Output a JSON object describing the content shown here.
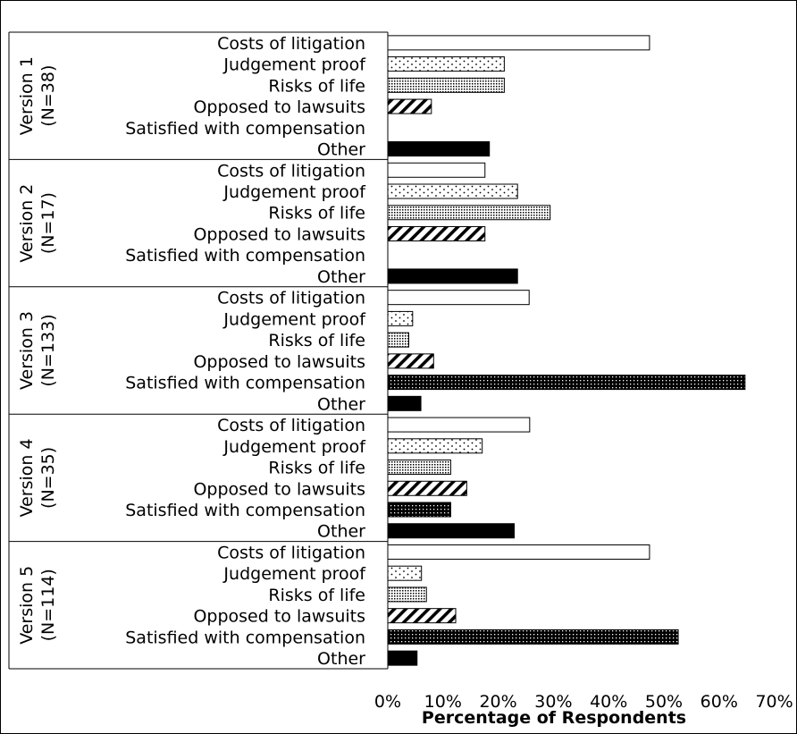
{
  "chart_data": {
    "type": "bar",
    "orientation": "horizontal",
    "xlabel": "Percentage of Respondents",
    "xlim": [
      0,
      70
    ],
    "x_ticks": [
      "0%",
      "10%",
      "20%",
      "30%",
      "40%",
      "50%",
      "60%",
      "70%"
    ],
    "categories": [
      "Costs of litigation",
      "Judgement proof",
      "Risks of life",
      "Opposed to lawsuits",
      "Satisfied with compensation",
      "Other"
    ],
    "fill_patterns": [
      "white",
      "sparse-dots",
      "dense-dots",
      "diagonal-hatch",
      "dark-dots",
      "solid-black"
    ],
    "groups": [
      {
        "line1": "Version 1",
        "line2": "(N=38)",
        "values": [
          47.4,
          21.1,
          21.1,
          7.9,
          0,
          18.4
        ]
      },
      {
        "line1": "Version 2",
        "line2": "(N=17)",
        "values": [
          17.6,
          23.5,
          29.4,
          17.6,
          0,
          23.5
        ]
      },
      {
        "line1": "Version 3",
        "line2": "(N=133)",
        "values": [
          25.6,
          4.5,
          3.8,
          8.3,
          64.7,
          6.0
        ]
      },
      {
        "line1": "Version 4",
        "line2": "(N=35)",
        "values": [
          25.7,
          17.1,
          11.4,
          14.3,
          11.4,
          22.9
        ]
      },
      {
        "line1": "Version 5",
        "line2": "(N=114)",
        "values": [
          47.4,
          6.1,
          7.0,
          12.3,
          52.6,
          5.3
        ]
      }
    ],
    "grid": false,
    "legend": "none"
  }
}
